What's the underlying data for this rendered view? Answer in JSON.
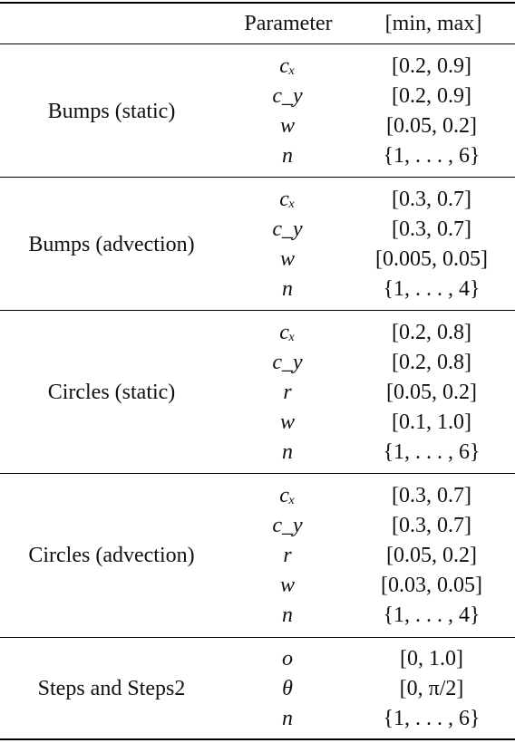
{
  "header": {
    "parameter": "Parameter",
    "range": "[min, max]"
  },
  "groups": [
    {
      "name": "Bumps (static)",
      "rows": [
        {
          "param": "cₓ",
          "range": "[0.2, 0.9]"
        },
        {
          "param": "c_y",
          "range": "[0.2, 0.9]"
        },
        {
          "param": "w",
          "range": "[0.05, 0.2]"
        },
        {
          "param": "n",
          "range": "{1, . . . , 6}"
        }
      ]
    },
    {
      "name": "Bumps (advection)",
      "rows": [
        {
          "param": "cₓ",
          "range": "[0.3, 0.7]"
        },
        {
          "param": "c_y",
          "range": "[0.3, 0.7]"
        },
        {
          "param": "w",
          "range": "[0.005, 0.05]"
        },
        {
          "param": "n",
          "range": "{1, . . . , 4}"
        }
      ]
    },
    {
      "name": "Circles (static)",
      "rows": [
        {
          "param": "cₓ",
          "range": "[0.2, 0.8]"
        },
        {
          "param": "c_y",
          "range": "[0.2, 0.8]"
        },
        {
          "param": "r",
          "range": "[0.05, 0.2]"
        },
        {
          "param": "w",
          "range": "[0.1, 1.0]"
        },
        {
          "param": "n",
          "range": "{1, . . . , 6}"
        }
      ]
    },
    {
      "name": "Circles (advection)",
      "rows": [
        {
          "param": "cₓ",
          "range": "[0.3, 0.7]"
        },
        {
          "param": "c_y",
          "range": "[0.3, 0.7]"
        },
        {
          "param": "r",
          "range": "[0.05, 0.2]"
        },
        {
          "param": "w",
          "range": "[0.03, 0.05]"
        },
        {
          "param": "n",
          "range": "{1, . . . , 4}"
        }
      ]
    },
    {
      "name": "Steps and Steps2",
      "rows": [
        {
          "param": "o",
          "range": "[0, 1.0]"
        },
        {
          "param": "θ",
          "range": "[0, π/2]"
        },
        {
          "param": "n",
          "range": "{1, . . . , 6}"
        }
      ]
    }
  ]
}
